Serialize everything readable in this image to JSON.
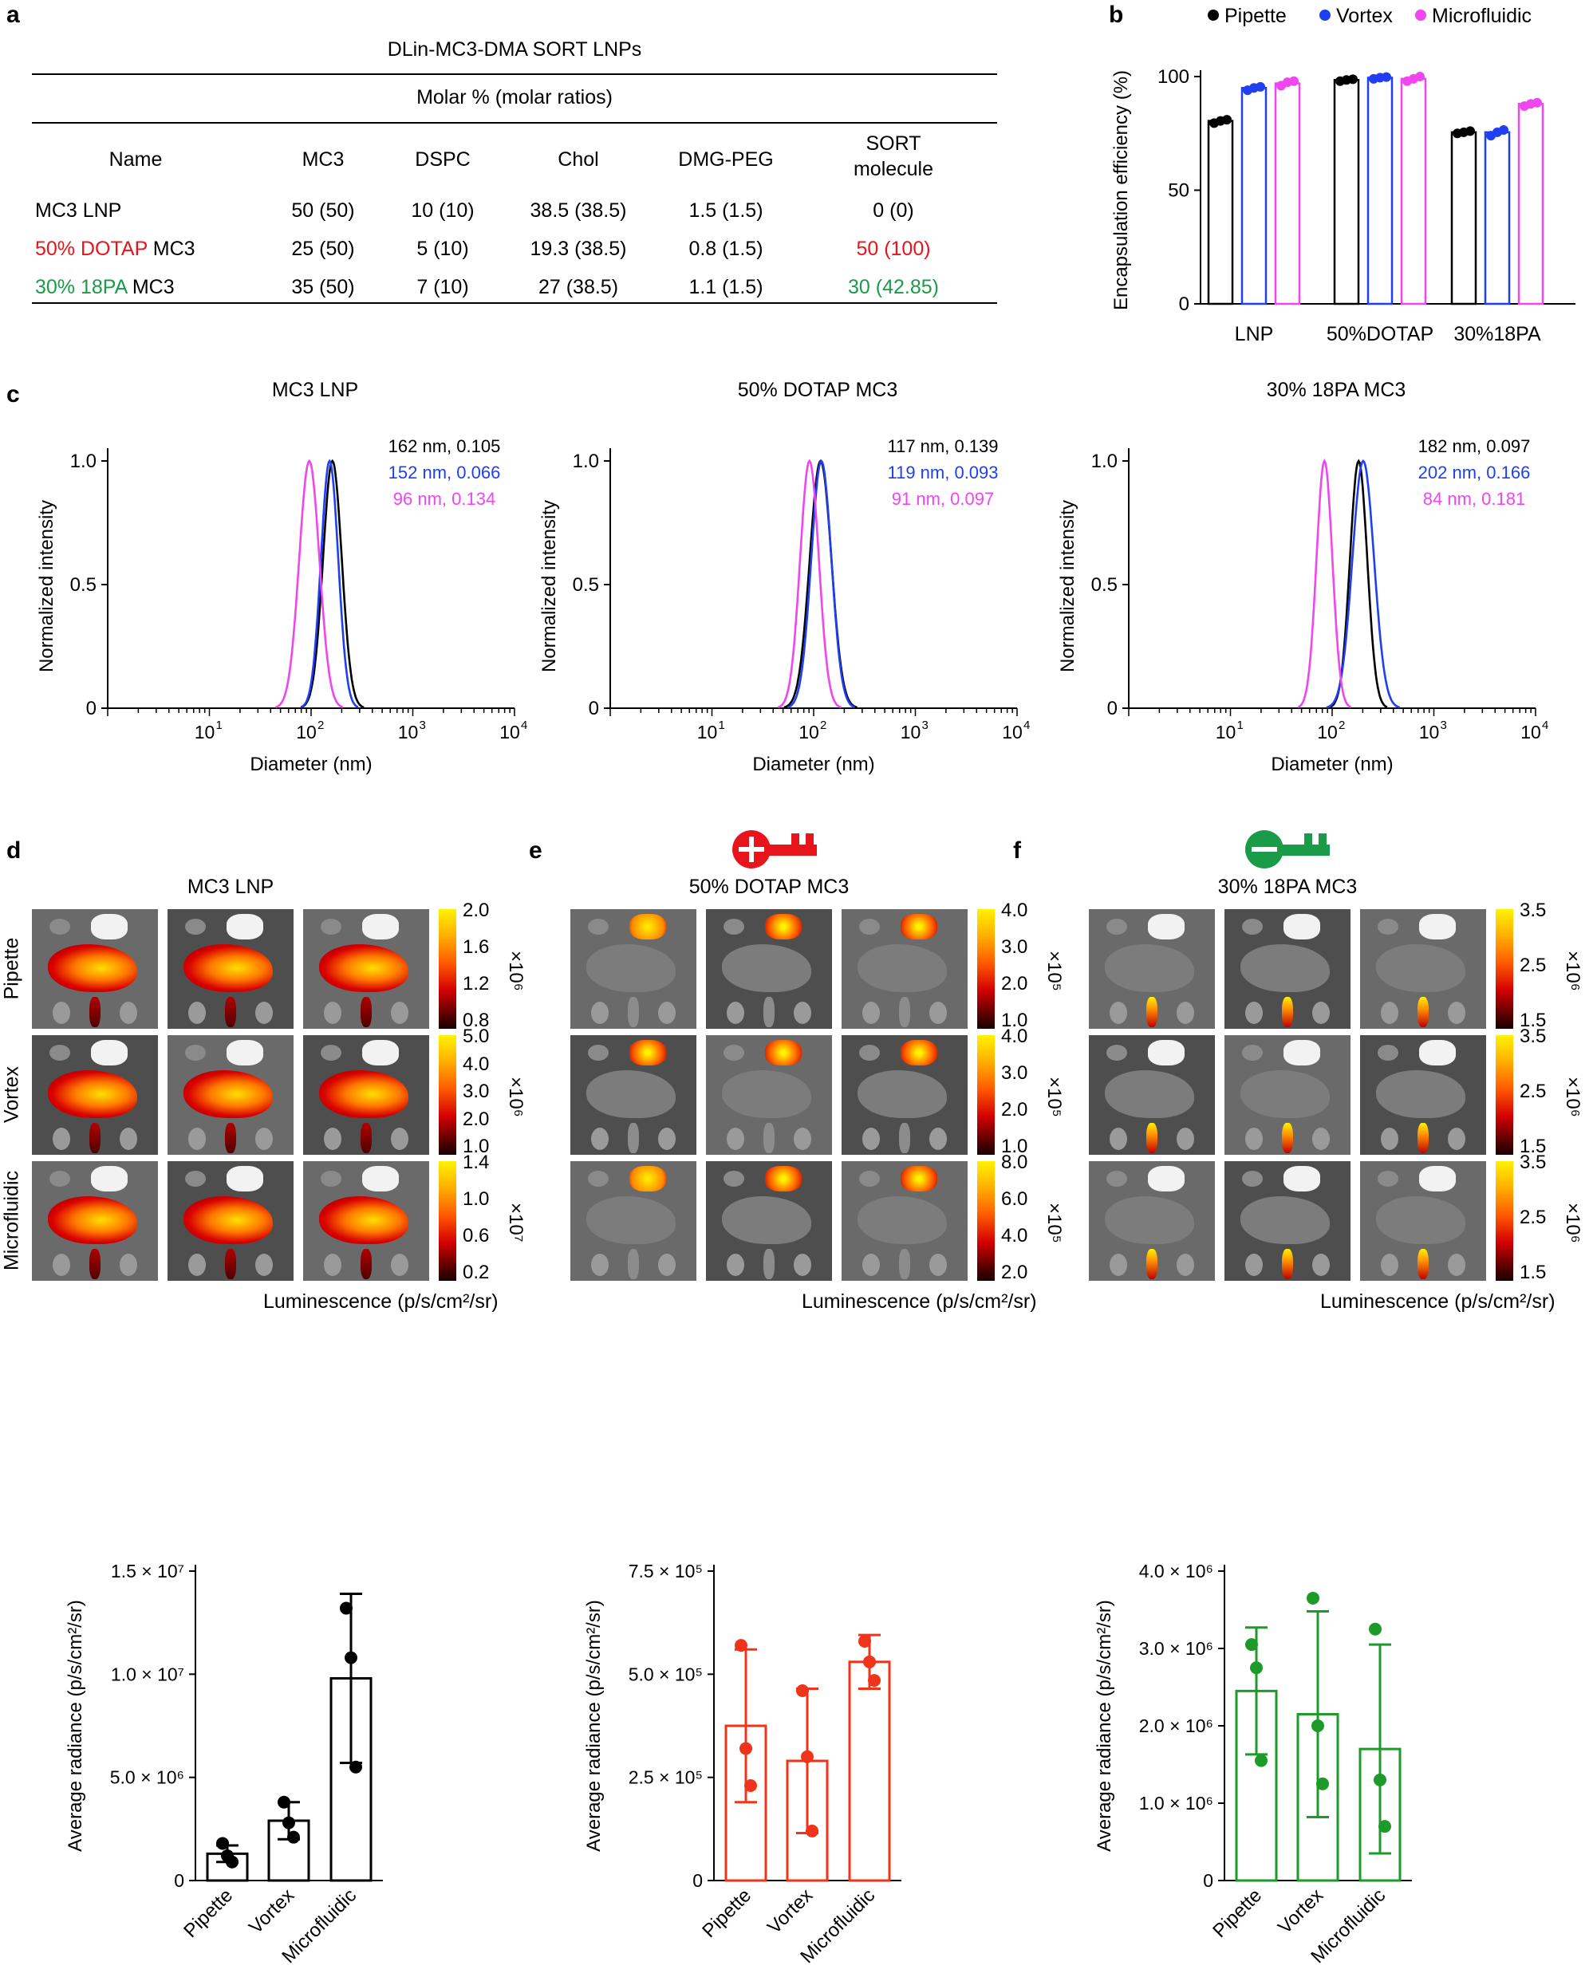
{
  "panel_labels": {
    "a": "a",
    "b": "b",
    "c": "c",
    "d": "d",
    "e": "e",
    "f": "f"
  },
  "table": {
    "title": "DLin-MC3-DMA SORT LNPs",
    "subtitle": "Molar % (molar ratios)",
    "headers": [
      "Name",
      "MC3",
      "DSPC",
      "Chol",
      "DMG-PEG",
      "SORT molecule"
    ],
    "header_sort_line1": "SORT",
    "header_sort_line2": "molecule",
    "rows": [
      {
        "name_prefix": "MC3 LNP",
        "name_colored": "",
        "name_suffix": "",
        "name_color": "#000000",
        "mc3": "50 (50)",
        "dspc": "10 (10)",
        "chol": "38.5 (38.5)",
        "dmg": "1.5 (1.5)",
        "sort": "0 (0)",
        "sort_color": "#000000"
      },
      {
        "name_prefix": "",
        "name_colored": "50% DOTAP",
        "name_suffix": " MC3",
        "name_color": "#e8141b",
        "mc3": "25 (50)",
        "dspc": "5 (10)",
        "chol": "19.3 (38.5)",
        "dmg": "0.8 (1.5)",
        "sort": "50 (100)",
        "sort_color": "#e8141b"
      },
      {
        "name_prefix": "",
        "name_colored": "30% 18PA",
        "name_suffix": " MC3",
        "name_color": "#1a9b48",
        "mc3": "35 (50)",
        "dspc": "7 (10)",
        "chol": "27 (38.5)",
        "dmg": "1.1 (1.5)",
        "sort": "30 (42.85)",
        "sort_color": "#1a9b48"
      }
    ]
  },
  "chart_data": [
    {
      "id": "b",
      "type": "bar",
      "ylabel": "Encapsulation efficiency (%)",
      "ylim": [
        0,
        100
      ],
      "yticks": [
        "0",
        "50",
        "100"
      ],
      "categories": [
        "LNP",
        "50%DOTAP",
        "30%18PA"
      ],
      "legend": "top",
      "series": [
        {
          "name": "Pipette",
          "color": "#000000",
          "values": [
            80.5,
            98.5,
            75.5
          ],
          "points": [
            [
              79.5,
              80.5,
              81
            ],
            [
              98,
              98.5,
              98.8
            ],
            [
              75,
              75.5,
              76
            ]
          ]
        },
        {
          "name": "Vortex",
          "color": "#1f3ff0",
          "values": [
            95,
            99.5,
            75.5
          ],
          "points": [
            [
              94,
              95,
              95.5
            ],
            [
              99,
              99.5,
              99.8
            ],
            [
              74,
              75.5,
              76.5
            ]
          ]
        },
        {
          "name": "Microfluidic",
          "color": "#f046f0",
          "values": [
            97,
            99,
            88
          ],
          "points": [
            [
              96,
              97.5,
              98
            ],
            [
              98,
              99,
              100
            ],
            [
              87,
              88,
              88.5
            ]
          ]
        }
      ]
    },
    {
      "id": "c1",
      "type": "line",
      "title": "MC3 LNP",
      "xlabel": "Diameter (nm)",
      "ylabel": "Normalized intensity",
      "xscale": "log",
      "xlim": [
        1,
        10000
      ],
      "ylim": [
        0,
        1.0
      ],
      "yticks": [
        "0",
        "0.5",
        "1.0"
      ],
      "series": [
        {
          "name": "Pipette",
          "color": "#000000",
          "peak": 162,
          "width": 0.13,
          "label": "162 nm, 0.105"
        },
        {
          "name": "Vortex",
          "color": "#1f3ff0",
          "peak": 152,
          "width": 0.12,
          "label": "152 nm, 0.066"
        },
        {
          "name": "Microfluidic",
          "color": "#f046f0",
          "peak": 96,
          "width": 0.14,
          "label": "96 nm, 0.134"
        }
      ]
    },
    {
      "id": "c2",
      "type": "line",
      "title": "50% DOTAP MC3",
      "xlabel": "Diameter (nm)",
      "ylabel": "Normalized intensity",
      "xscale": "log",
      "xlim": [
        1,
        10000
      ],
      "ylim": [
        0,
        1.0
      ],
      "yticks": [
        "0",
        "0.5",
        "1.0"
      ],
      "series": [
        {
          "name": "Pipette",
          "color": "#000000",
          "peak": 117,
          "width": 0.15,
          "label": "117 nm, 0.139"
        },
        {
          "name": "Vortex",
          "color": "#1f3ff0",
          "peak": 119,
          "width": 0.14,
          "label": "119 nm, 0.093"
        },
        {
          "name": "Microfluidic",
          "color": "#f046f0",
          "peak": 91,
          "width": 0.13,
          "label": "91 nm, 0.097"
        }
      ]
    },
    {
      "id": "c3",
      "type": "line",
      "title": "30% 18PA MC3",
      "xlabel": "Diameter (nm)",
      "ylabel": "Normalized intensity",
      "xscale": "log",
      "xlim": [
        1,
        10000
      ],
      "ylim": [
        0,
        1.0
      ],
      "yticks": [
        "0",
        "0.5",
        "1.0"
      ],
      "series": [
        {
          "name": "Pipette",
          "color": "#000000",
          "peak": 182,
          "width": 0.12,
          "label": "182 nm, 0.097"
        },
        {
          "name": "Vortex",
          "color": "#1f3ff0",
          "peak": 202,
          "width": 0.15,
          "label": "202 nm, 0.166"
        },
        {
          "name": "Microfluidic",
          "color": "#f046f0",
          "peak": 84,
          "width": 0.11,
          "label": "84 nm, 0.181"
        }
      ]
    },
    {
      "id": "d2",
      "type": "bar",
      "color": "#000000",
      "ylabel": "Average radiance (p/s/cm²/sr)",
      "ylim": [
        0,
        15000000
      ],
      "yticks": [
        "0",
        "5.0 × 10⁶",
        "1.0 × 10⁷",
        "1.5 × 10⁷"
      ],
      "categories": [
        "Pipette",
        "Vortex",
        "Microfluidic"
      ],
      "values": [
        1300000,
        2900000,
        9800000
      ],
      "errors": [
        400000,
        900000,
        4100000
      ],
      "points": [
        [
          1800000,
          1200000,
          900000
        ],
        [
          3800000,
          2800000,
          2100000
        ],
        [
          13200000,
          10800000,
          5500000
        ]
      ]
    },
    {
      "id": "e2",
      "type": "bar",
      "color": "#f0341a",
      "ylabel": "Average radiance (p/s/cm²/sr)",
      "ylim": [
        0,
        750000
      ],
      "yticks": [
        "0",
        "2.5 × 10⁵",
        "5.0 × 10⁵",
        "7.5 × 10⁵"
      ],
      "categories": [
        "Pipette",
        "Vortex",
        "Microfluidic"
      ],
      "values": [
        375000,
        290000,
        530000
      ],
      "errors": [
        185000,
        175000,
        65000
      ],
      "points": [
        [
          570000,
          320000,
          230000
        ],
        [
          460000,
          300000,
          120000
        ],
        [
          580000,
          530000,
          485000
        ]
      ]
    },
    {
      "id": "f2",
      "type": "bar",
      "color": "#1d9a2a",
      "ylabel": "Average radiance (p/s/cm²/sr)",
      "ylim": [
        0,
        4000000
      ],
      "yticks": [
        "0",
        "1.0 × 10⁶",
        "2.0 × 10⁶",
        "3.0 × 10⁶",
        "4.0 × 10⁶"
      ],
      "categories": [
        "Pipette",
        "Vortex",
        "Microfluidic"
      ],
      "values": [
        2450000,
        2150000,
        1700000
      ],
      "errors": [
        820000,
        1330000,
        1350000
      ],
      "points": [
        [
          3050000,
          2750000,
          1550000
        ],
        [
          3650000,
          2000000,
          1250000
        ],
        [
          3250000,
          1300000,
          700000
        ]
      ]
    }
  ],
  "imaging": {
    "row_labels": [
      "Pipette",
      "Vortex",
      "Microfluidic"
    ],
    "lum_label": "Luminescence (p/s/cm²/sr)",
    "panels": [
      {
        "title": "MC3 LNP",
        "scales": [
          {
            "ticks": [
              "2.0",
              "1.6",
              "1.2",
              "0.8"
            ],
            "exp": "×10⁶"
          },
          {
            "ticks": [
              "5.0",
              "4.0",
              "3.0",
              "2.0",
              "1.0"
            ],
            "exp": "×10⁶"
          },
          {
            "ticks": [
              "1.4",
              "1.0",
              "0.6",
              "0.2"
            ],
            "exp": "×10⁷"
          }
        ]
      },
      {
        "title": "50% DOTAP MC3",
        "scales": [
          {
            "ticks": [
              "4.0",
              "3.0",
              "2.0",
              "1.0"
            ],
            "exp": "×10⁵"
          },
          {
            "ticks": [
              "4.0",
              "3.0",
              "2.0",
              "1.0"
            ],
            "exp": "×10⁵"
          },
          {
            "ticks": [
              "8.0",
              "6.0",
              "4.0",
              "2.0"
            ],
            "exp": "×10⁵"
          }
        ]
      },
      {
        "title": "30% 18PA MC3",
        "scales": [
          {
            "ticks": [
              "3.5",
              "2.5",
              "1.5"
            ],
            "exp": "×10⁶"
          },
          {
            "ticks": [
              "3.5",
              "2.5",
              "1.5"
            ],
            "exp": "×10⁶"
          },
          {
            "ticks": [
              "3.5",
              "2.5",
              "1.5"
            ],
            "exp": "×10⁶"
          }
        ]
      }
    ]
  },
  "colors": {
    "dotap": "#e8141b",
    "pa": "#1a9b48",
    "black": "#000000",
    "blue": "#1f3ff0",
    "magenta": "#f046f0"
  },
  "icons": {
    "positive_key": "positive-key-icon",
    "negative_key": "negative-key-icon"
  }
}
